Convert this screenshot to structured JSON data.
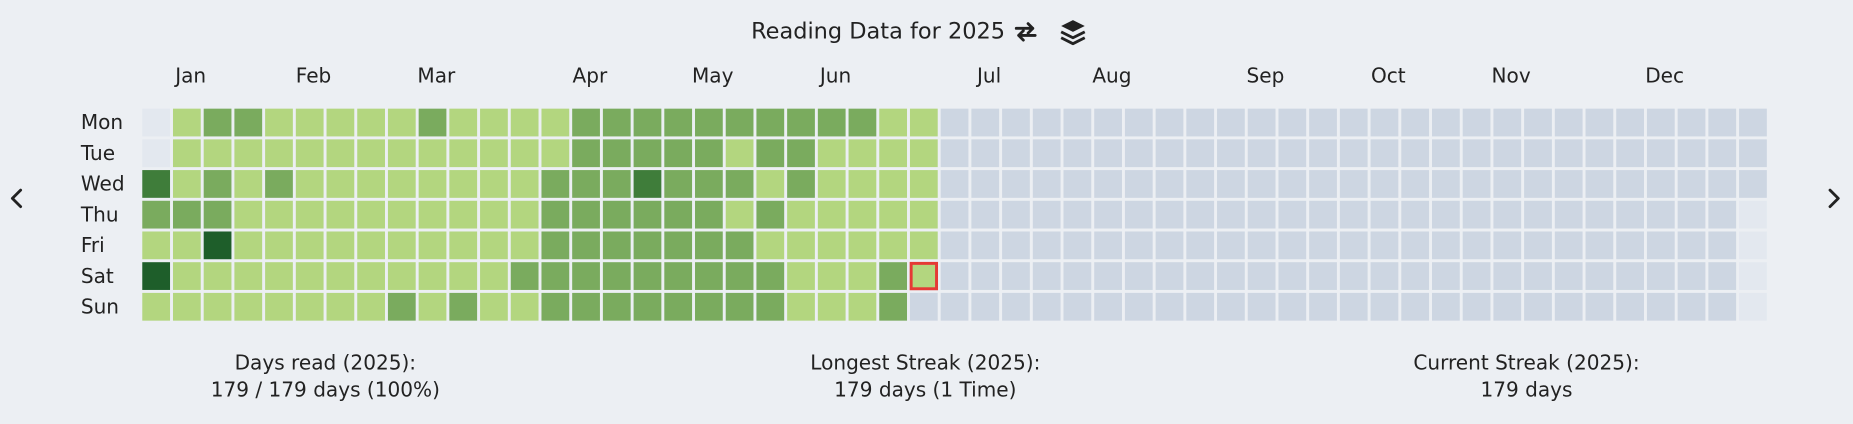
{
  "header": {
    "title": "Reading Data for 2025"
  },
  "heatmap": {
    "months": [
      "Jan",
      "Feb",
      "Mar",
      "Apr",
      "May",
      "Jun",
      "Jul",
      "Aug",
      "Sep",
      "Oct",
      "Nov",
      "Dec"
    ],
    "weekdays": [
      "Mon",
      "Tue",
      "Wed",
      "Thu",
      "Fri",
      "Sat",
      "Sun"
    ],
    "cells": [
      [
        null,
        1,
        2,
        2,
        1,
        1,
        1,
        1,
        1,
        2,
        1,
        1,
        1,
        1,
        2,
        2,
        2,
        2,
        2,
        2,
        2,
        2,
        2,
        2,
        1,
        1,
        0,
        0,
        0,
        0,
        0,
        0,
        0,
        0,
        0,
        0,
        0,
        0,
        0,
        0,
        0,
        0,
        0,
        0,
        0,
        0,
        0,
        0,
        0,
        0,
        0,
        0,
        0
      ],
      [
        null,
        1,
        1,
        1,
        1,
        1,
        1,
        1,
        1,
        1,
        1,
        1,
        1,
        1,
        2,
        2,
        2,
        2,
        2,
        1,
        2,
        2,
        1,
        1,
        1,
        1,
        0,
        0,
        0,
        0,
        0,
        0,
        0,
        0,
        0,
        0,
        0,
        0,
        0,
        0,
        0,
        0,
        0,
        0,
        0,
        0,
        0,
        0,
        0,
        0,
        0,
        0,
        0
      ],
      [
        3,
        1,
        2,
        1,
        2,
        1,
        1,
        1,
        1,
        1,
        1,
        1,
        1,
        2,
        2,
        2,
        3,
        2,
        2,
        2,
        1,
        2,
        1,
        1,
        1,
        1,
        0,
        0,
        0,
        0,
        0,
        0,
        0,
        0,
        0,
        0,
        0,
        0,
        0,
        0,
        0,
        0,
        0,
        0,
        0,
        0,
        0,
        0,
        0,
        0,
        0,
        0,
        0
      ],
      [
        2,
        2,
        2,
        1,
        1,
        1,
        1,
        1,
        1,
        1,
        1,
        1,
        1,
        2,
        2,
        2,
        2,
        2,
        2,
        1,
        2,
        1,
        1,
        1,
        1,
        1,
        0,
        0,
        0,
        0,
        0,
        0,
        0,
        0,
        0,
        0,
        0,
        0,
        0,
        0,
        0,
        0,
        0,
        0,
        0,
        0,
        0,
        0,
        0,
        0,
        0,
        0,
        null
      ],
      [
        1,
        1,
        4,
        1,
        1,
        1,
        1,
        1,
        1,
        1,
        1,
        1,
        1,
        2,
        2,
        2,
        2,
        2,
        2,
        2,
        1,
        1,
        1,
        1,
        1,
        1,
        0,
        0,
        0,
        0,
        0,
        0,
        0,
        0,
        0,
        0,
        0,
        0,
        0,
        0,
        0,
        0,
        0,
        0,
        0,
        0,
        0,
        0,
        0,
        0,
        0,
        0,
        null
      ],
      [
        4,
        1,
        1,
        1,
        1,
        1,
        1,
        1,
        1,
        1,
        1,
        1,
        2,
        2,
        2,
        2,
        2,
        2,
        2,
        2,
        2,
        1,
        1,
        1,
        2,
        1,
        0,
        0,
        0,
        0,
        0,
        0,
        0,
        0,
        0,
        0,
        0,
        0,
        0,
        0,
        0,
        0,
        0,
        0,
        0,
        0,
        0,
        0,
        0,
        0,
        0,
        0,
        null
      ],
      [
        1,
        1,
        1,
        1,
        1,
        1,
        1,
        1,
        2,
        1,
        2,
        1,
        1,
        2,
        2,
        2,
        2,
        2,
        2,
        2,
        2,
        1,
        1,
        1,
        2,
        0,
        0,
        0,
        0,
        0,
        0,
        0,
        0,
        0,
        0,
        0,
        0,
        0,
        0,
        0,
        0,
        0,
        0,
        0,
        0,
        0,
        0,
        0,
        0,
        0,
        0,
        0,
        null
      ]
    ]
  },
  "stats": [
    {
      "label": "Days read (2025):",
      "value": "179 / 179 days (100%)"
    },
    {
      "label": "Longest Streak (2025):",
      "value": "179 days (1 Time)"
    },
    {
      "label": "Current Streak (2025):",
      "value": "179 days"
    }
  ]
}
